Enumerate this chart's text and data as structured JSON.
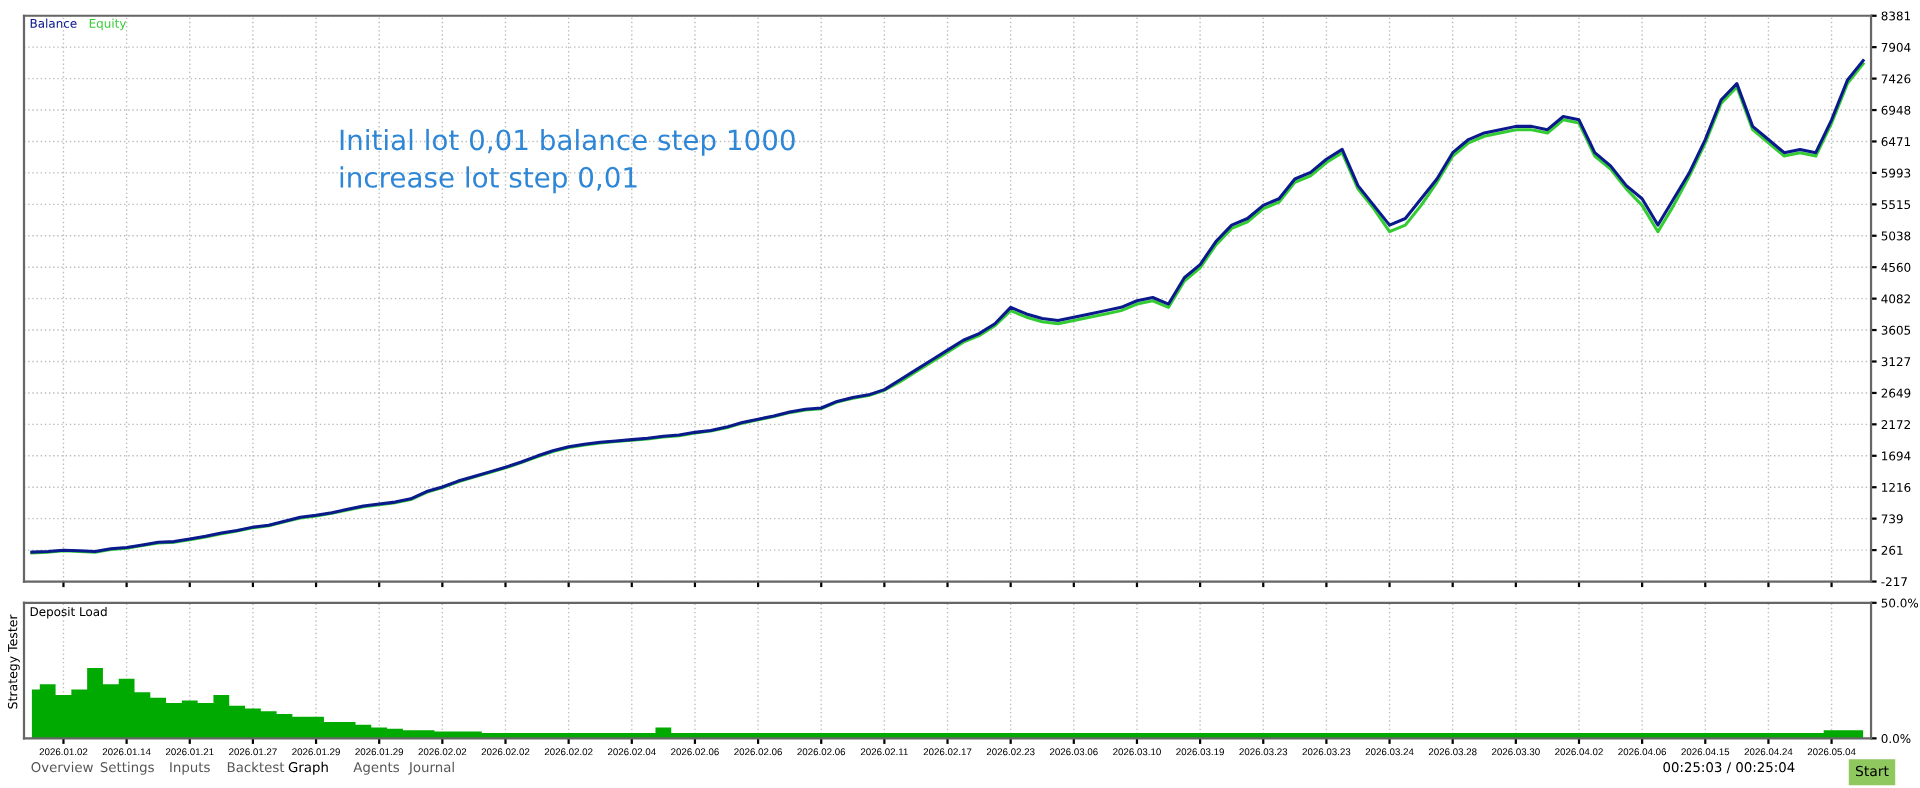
{
  "chart_data": [
    {
      "type": "line",
      "legend": "top left",
      "grid": true,
      "tick_labels": "y",
      "categories": [
        null,
        null,
        "2026.01.02",
        null,
        null,
        null,
        "2026.01.14",
        null,
        null,
        null,
        "2026.01.21",
        null,
        null,
        null,
        "2026.01.27",
        null,
        null,
        null,
        "2026.01.29",
        null,
        null,
        null,
        "2026.01.29",
        null,
        null,
        null,
        "2026.02.02",
        null,
        null,
        null,
        "2026.02.02",
        null,
        null,
        null,
        "2026.02.02",
        null,
        null,
        null,
        "2026.02.04",
        null,
        null,
        null,
        "2026.02.06",
        null,
        null,
        null,
        "2026.02.06",
        null,
        null,
        null,
        "2026.02.06",
        null,
        null,
        null,
        "2026.02.11",
        null,
        null,
        null,
        "2026.02.17",
        null,
        null,
        null,
        "2026.02.23",
        null,
        null,
        null,
        "2026.03.06",
        null,
        null,
        null,
        "2026.03.10",
        null,
        null,
        null,
        "2026.03.19",
        null,
        null,
        null,
        "2026.03.23",
        null,
        null,
        null,
        "2026.03.23",
        null,
        null,
        null,
        "2026.03.24",
        null,
        null,
        null,
        "2026.03.28",
        null,
        null,
        null,
        "2026.03.30",
        null,
        null,
        null,
        "2026.04.02",
        null,
        null,
        null,
        "2026.04.06",
        null,
        null,
        null,
        "2026.04.15",
        null,
        null,
        null,
        "2026.04.24",
        null,
        null,
        null,
        "2026.05.04",
        null,
        null
      ],
      "ylim": [
        -217,
        8381
      ],
      "yticks": [
        -217,
        261,
        739,
        1216,
        1694,
        2172,
        2649,
        3127,
        3605,
        4082,
        4560,
        5038,
        5515,
        5993,
        6471,
        6948,
        7426,
        7904,
        8381
      ],
      "annotations": [
        "Initial lot 0,01 balance step 1000\nincrease lot step 0,01"
      ],
      "series": [
        {
          "name": "Equity",
          "color": "#33cc33",
          "values": [
            220,
            230,
            250,
            240,
            230,
            270,
            290,
            330,
            370,
            380,
            420,
            460,
            510,
            550,
            600,
            630,
            690,
            750,
            780,
            820,
            870,
            920,
            950,
            980,
            1030,
            1140,
            1210,
            1300,
            1370,
            1440,
            1510,
            1590,
            1680,
            1760,
            1820,
            1860,
            1890,
            1910,
            1930,
            1950,
            1980,
            2000,
            2040,
            2070,
            2120,
            2190,
            2240,
            2290,
            2350,
            2390,
            2410,
            2510,
            2570,
            2610,
            2690,
            2820,
            2970,
            3120,
            3270,
            3420,
            3520,
            3670,
            3900,
            3800,
            3730,
            3700,
            3750,
            3800,
            3850,
            3900,
            4000,
            4050,
            3950,
            4350,
            4550,
            4900,
            5150,
            5250,
            5450,
            5550,
            5850,
            5950,
            6150,
            6300,
            5750,
            5450,
            5100,
            5200,
            5500,
            5850,
            6250,
            6450,
            6550,
            6600,
            6650,
            6650,
            6600,
            6800,
            6750,
            6250,
            6050,
            5750,
            5500,
            5100,
            5500,
            5950,
            6450,
            7050,
            7300,
            6650,
            6450,
            6250,
            6300,
            6250,
            6750,
            7350,
            7650
          ]
        },
        {
          "name": "Balance",
          "color": "#0a1a8c",
          "values": [
            230,
            240,
            260,
            250,
            240,
            280,
            300,
            340,
            380,
            390,
            430,
            470,
            520,
            560,
            610,
            640,
            700,
            760,
            790,
            830,
            880,
            930,
            960,
            990,
            1040,
            1150,
            1220,
            1310,
            1380,
            1450,
            1520,
            1600,
            1690,
            1770,
            1830,
            1870,
            1900,
            1920,
            1940,
            1960,
            1990,
            2010,
            2050,
            2080,
            2130,
            2200,
            2250,
            2300,
            2360,
            2400,
            2420,
            2520,
            2580,
            2620,
            2700,
            2850,
            3000,
            3150,
            3300,
            3450,
            3550,
            3700,
            3950,
            3850,
            3780,
            3750,
            3800,
            3850,
            3900,
            3950,
            4050,
            4100,
            4000,
            4400,
            4600,
            4950,
            5200,
            5300,
            5500,
            5600,
            5900,
            6000,
            6200,
            6350,
            5800,
            5500,
            5200,
            5300,
            5600,
            5900,
            6300,
            6500,
            6600,
            6650,
            6700,
            6700,
            6650,
            6850,
            6800,
            6300,
            6100,
            5800,
            5600,
            5200,
            5600,
            6000,
            6500,
            7100,
            7350,
            6700,
            6500,
            6300,
            6350,
            6300,
            6800,
            7400,
            7700
          ]
        }
      ]
    },
    {
      "type": "area",
      "title": "Deposit Load",
      "grid": true,
      "categories": [
        null,
        null,
        "2026.01.02",
        null,
        null,
        null,
        "2026.01.14",
        null,
        null,
        null,
        "2026.01.21",
        null,
        null,
        null,
        "2026.01.27",
        null,
        null,
        null,
        "2026.01.29",
        null,
        null,
        null,
        "2026.01.29",
        null,
        null,
        null,
        "2026.02.02",
        null,
        null,
        null,
        "2026.02.02",
        null,
        null,
        null,
        "2026.02.02",
        null,
        null,
        null,
        "2026.02.04",
        null,
        null,
        null,
        "2026.02.06",
        null,
        null,
        null,
        "2026.02.06",
        null,
        null,
        null,
        "2026.02.06",
        null,
        null,
        null,
        "2026.02.11",
        null,
        null,
        null,
        "2026.02.17",
        null,
        null,
        null,
        "2026.02.23",
        null,
        null,
        null,
        "2026.03.06",
        null,
        null,
        null,
        "2026.03.10",
        null,
        null,
        null,
        "2026.03.19",
        null,
        null,
        null,
        "2026.03.23",
        null,
        null,
        null,
        "2026.03.23",
        null,
        null,
        null,
        "2026.03.24",
        null,
        null,
        null,
        "2026.03.28",
        null,
        null,
        null,
        "2026.03.30",
        null,
        null,
        null,
        "2026.04.02",
        null,
        null,
        null,
        "2026.04.06",
        null,
        null,
        null,
        "2026.04.15",
        null,
        null,
        null,
        "2026.04.24",
        null,
        null,
        null,
        "2026.05.04",
        null,
        null
      ],
      "ylim": [
        0,
        50
      ],
      "yticks": [
        {
          "value": 0,
          "label": "0.0%"
        },
        {
          "value": 50,
          "label": "50.0%"
        }
      ],
      "annotations": [
        "Strategy Tester",
        "Overview",
        "Settings",
        "Inputs",
        "Backtest",
        "Graph",
        "Agents",
        "Journal",
        "00:25:03 / 00:25:04",
        "Start"
      ],
      "series": [
        {
          "color": "#00aa00",
          "values": [
            18,
            20,
            16,
            18,
            26,
            20,
            22,
            17,
            15,
            13,
            14,
            13,
            16,
            12,
            11,
            10,
            9,
            8,
            8,
            6,
            6,
            5,
            4,
            3.5,
            3,
            3,
            2.5,
            2.5,
            2.5,
            2,
            2,
            2,
            2,
            2,
            2,
            2,
            2,
            2,
            2,
            2,
            4,
            2,
            2,
            2,
            2,
            2,
            2,
            2,
            2,
            2,
            2,
            2,
            2,
            2,
            2,
            2,
            2,
            2,
            2,
            2,
            2,
            2,
            2,
            2,
            2,
            2,
            2,
            2,
            2,
            2,
            2,
            2,
            2,
            2,
            2,
            2,
            2,
            2,
            2,
            2,
            2,
            2,
            2,
            2,
            2,
            2,
            2,
            2,
            2,
            2,
            2,
            2,
            2,
            2,
            2,
            2,
            2,
            2,
            2,
            2,
            2,
            2,
            2,
            2,
            2,
            2,
            2,
            2,
            2,
            2,
            2,
            2,
            2,
            2,
            3,
            3,
            3
          ]
        }
      ]
    }
  ]
}
